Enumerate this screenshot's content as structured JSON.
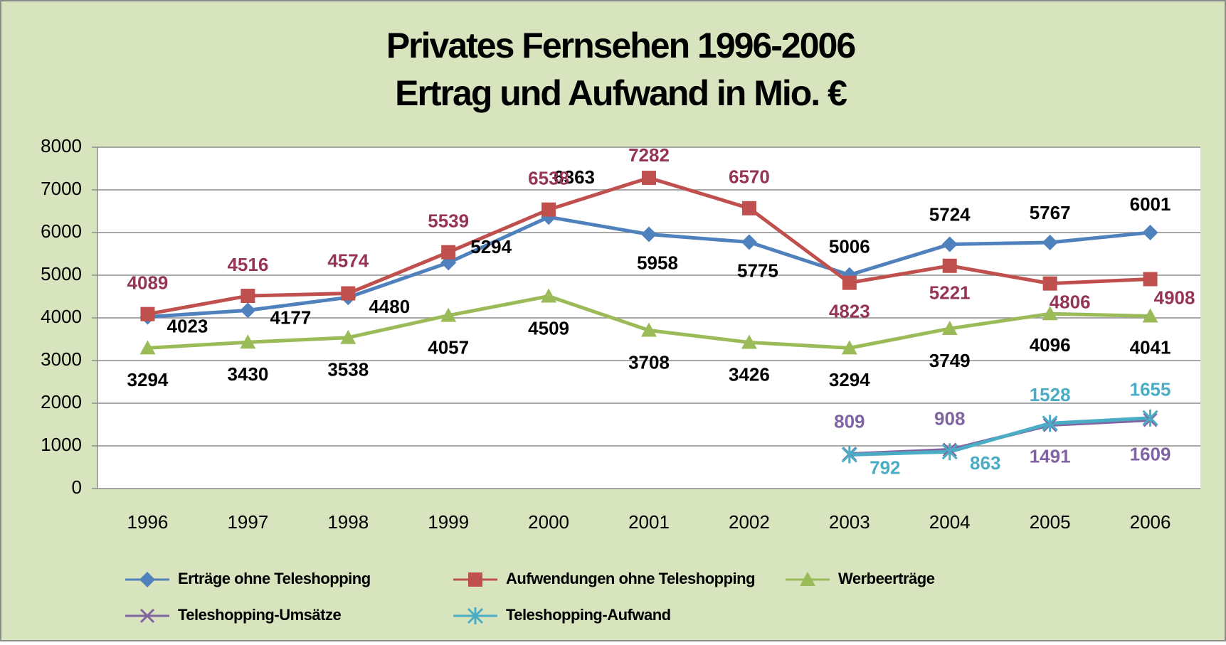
{
  "chart_data": {
    "type": "line",
    "title": [
      "Privates Fernsehen 1996-2006",
      "Ertrag und Aufwand in Mio. €"
    ],
    "categories": [
      "1996",
      "1997",
      "1998",
      "1999",
      "2000",
      "2001",
      "2002",
      "2003",
      "2004",
      "2005",
      "2006"
    ],
    "series": [
      {
        "name": "Erträge ohne Teleshopping",
        "color": "#4f81bd",
        "label_color": "#000000",
        "marker": "diamond",
        "values": [
          4023,
          4177,
          4480,
          5294,
          6363,
          5958,
          5775,
          5006,
          5724,
          5767,
          6001
        ]
      },
      {
        "name": "Aufwendungen ohne Teleshopping",
        "color": "#c0504d",
        "label_color": "#953553",
        "marker": "square",
        "values": [
          4089,
          4516,
          4574,
          5539,
          6538,
          7282,
          6570,
          4823,
          5221,
          4806,
          4908
        ]
      },
      {
        "name": "Werbeerträge",
        "color": "#9bbb59",
        "label_color": "#000000",
        "marker": "triangle",
        "values": [
          3294,
          3430,
          3538,
          4057,
          4509,
          3708,
          3426,
          3294,
          3749,
          4096,
          4041
        ]
      },
      {
        "name": "Teleshopping-Umsätze",
        "color": "#8064a2",
        "label_color": "#8064a2",
        "marker": "x",
        "values": [
          null,
          null,
          null,
          null,
          null,
          null,
          null,
          809,
          908,
          1491,
          1609
        ]
      },
      {
        "name": "Teleshopping-Aufwand",
        "color": "#4bacc6",
        "label_color": "#4bacc6",
        "marker": "star",
        "values": [
          null,
          null,
          null,
          null,
          null,
          null,
          null,
          792,
          863,
          1528,
          1655
        ]
      }
    ],
    "ylim": [
      0,
      8000
    ],
    "yticks": [
      0,
      1000,
      2000,
      3000,
      4000,
      5000,
      6000,
      7000,
      8000
    ],
    "grid": true,
    "legend": "bottom"
  }
}
